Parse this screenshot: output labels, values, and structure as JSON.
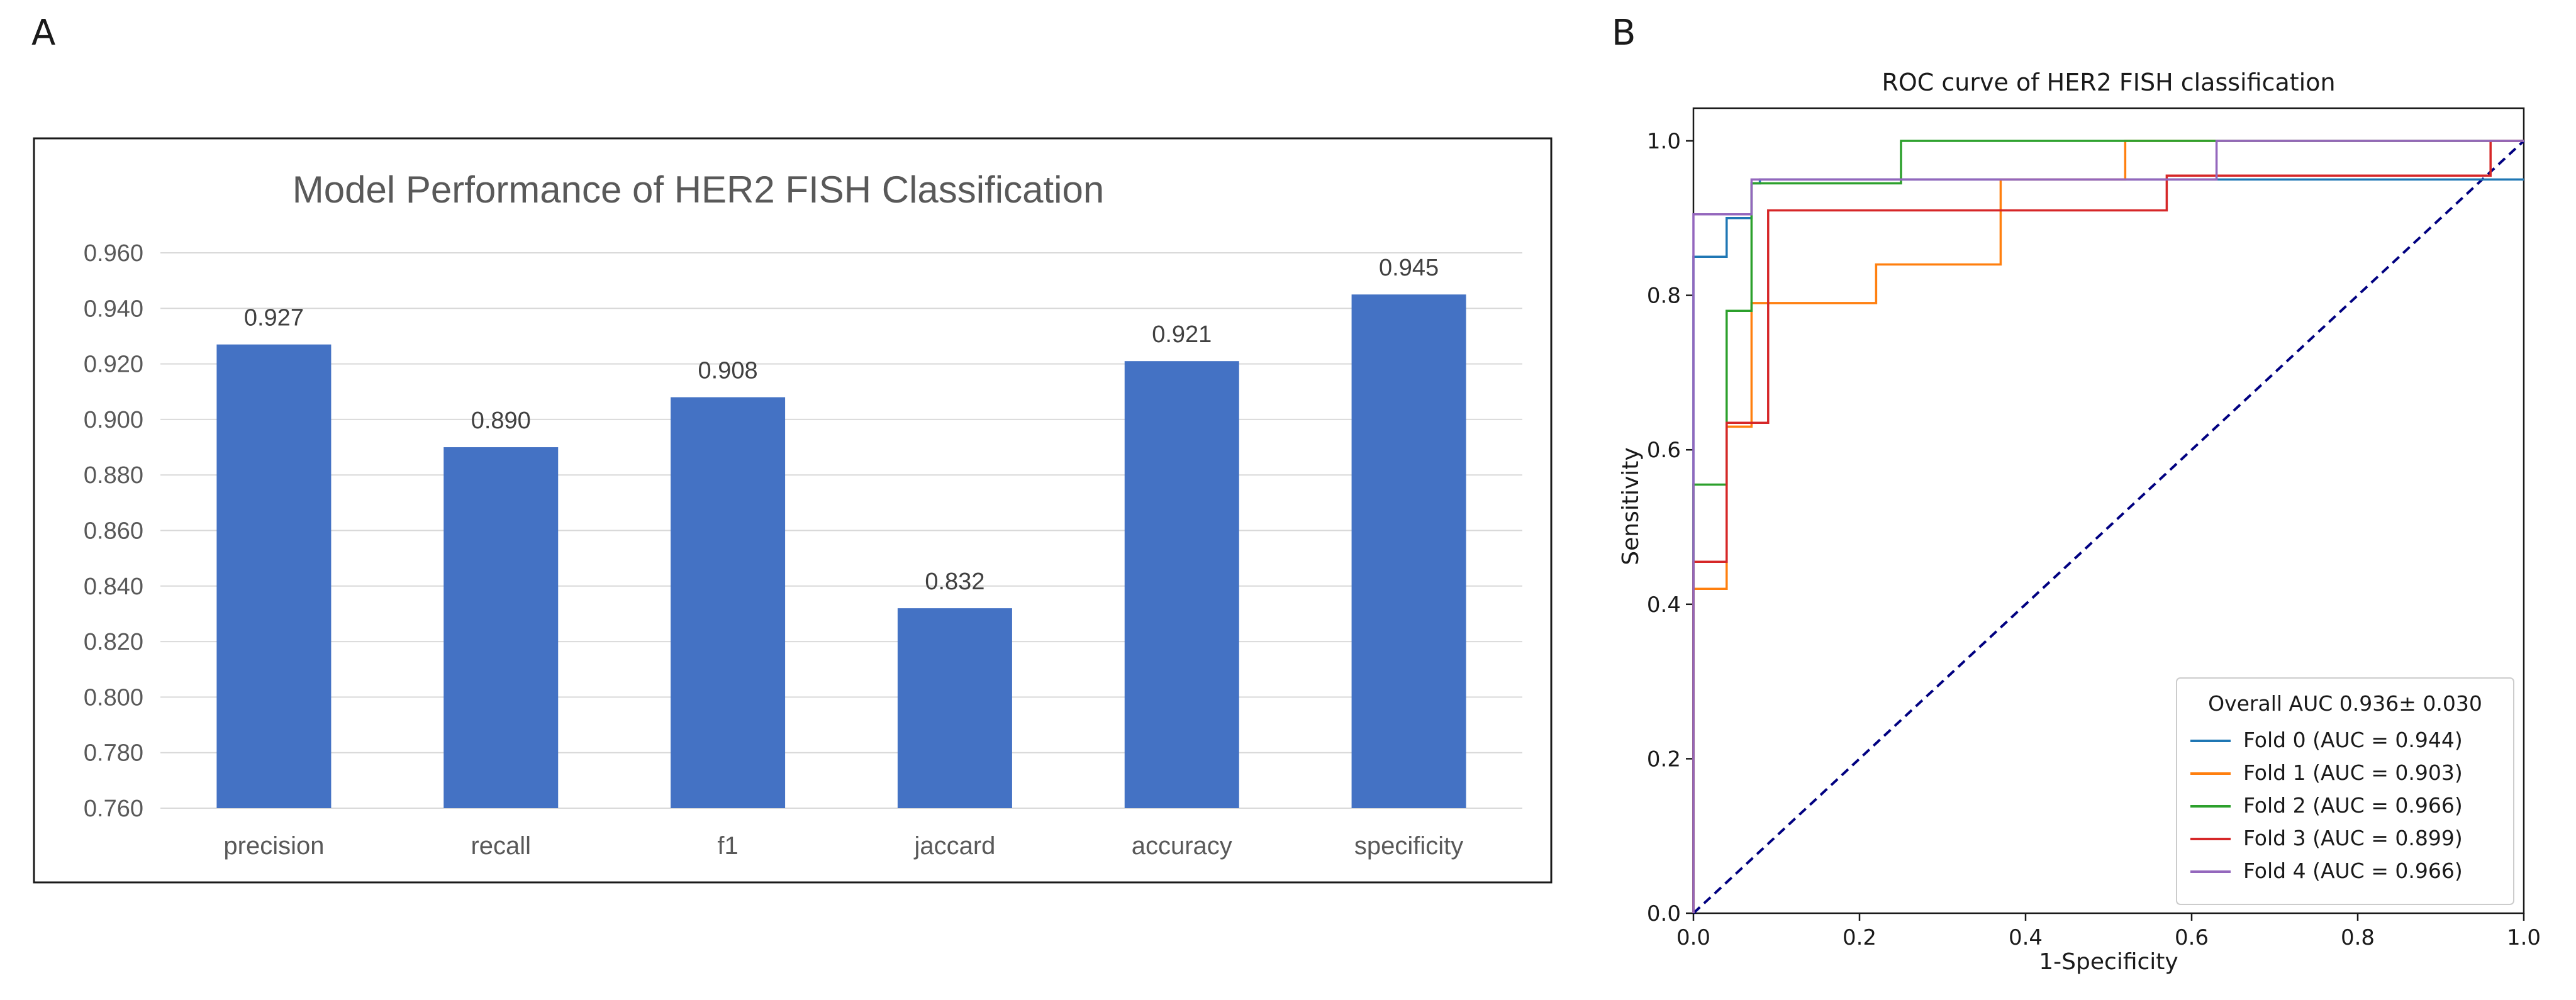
{
  "panels": {
    "a": "A",
    "b": "B"
  },
  "chart_data": [
    {
      "type": "bar",
      "title": "Model Performance of HER2 FISH Classification",
      "categories": [
        "precision",
        "recall",
        "f1",
        "jaccard",
        "accuracy",
        "specificity"
      ],
      "values": [
        0.927,
        0.89,
        0.908,
        0.832,
        0.921,
        0.945
      ],
      "value_labels": [
        "0.927",
        "0.890",
        "0.908",
        "0.832",
        "0.921",
        "0.945"
      ],
      "ylim": [
        0.76,
        0.96
      ],
      "yticks": [
        "0.760",
        "0.780",
        "0.800",
        "0.820",
        "0.840",
        "0.860",
        "0.880",
        "0.900",
        "0.920",
        "0.940",
        "0.960"
      ],
      "xlabel": "",
      "ylabel": "",
      "grid": true,
      "bar_color": "#4472c4"
    },
    {
      "type": "line",
      "title": "ROC curve of HER2 FISH classification",
      "xlabel": "1-Specificity",
      "ylabel": "Sensitivity",
      "xlim": [
        0.0,
        1.0
      ],
      "ylim": [
        0.0,
        1.05
      ],
      "xticks": [
        "0.0",
        "0.2",
        "0.4",
        "0.6",
        "0.8",
        "1.0"
      ],
      "yticks": [
        "0.0",
        "0.2",
        "0.4",
        "0.6",
        "0.8",
        "1.0"
      ],
      "legend_title": "Overall AUC 0.936± 0.030",
      "legend_position": "bottom-right",
      "diagonal_color": "#000080",
      "series": [
        {
          "name": "Fold 0 (AUC = 0.944)",
          "color": "#1f77b4",
          "x": [
            0,
            0,
            0.04,
            0.04,
            0.07,
            0.07,
            0.08,
            0.08,
            1.0,
            1.0
          ],
          "y": [
            0,
            0.85,
            0.85,
            0.9,
            0.9,
            0.945,
            0.945,
            0.95,
            0.95,
            0.95
          ]
        },
        {
          "name": "Fold 1 (AUC = 0.903)",
          "color": "#ff7f0e",
          "x": [
            0,
            0,
            0.04,
            0.04,
            0.07,
            0.07,
            0.22,
            0.22,
            0.37,
            0.37,
            0.52,
            0.52,
            1.0
          ],
          "y": [
            0,
            0.42,
            0.42,
            0.63,
            0.63,
            0.79,
            0.79,
            0.84,
            0.84,
            0.95,
            0.95,
            1.0,
            1.0
          ]
        },
        {
          "name": "Fold 2 (AUC = 0.966)",
          "color": "#2ca02c",
          "x": [
            0,
            0,
            0.04,
            0.04,
            0.07,
            0.07,
            0.25,
            0.25,
            1.0
          ],
          "y": [
            0,
            0.555,
            0.555,
            0.78,
            0.78,
            0.945,
            0.945,
            1.0,
            1.0
          ]
        },
        {
          "name": "Fold 3 (AUC = 0.899)",
          "color": "#d62728",
          "x": [
            0,
            0,
            0.04,
            0.04,
            0.09,
            0.09,
            0.57,
            0.57,
            0.96,
            0.96,
            1.0
          ],
          "y": [
            0,
            0.455,
            0.455,
            0.635,
            0.635,
            0.91,
            0.91,
            0.955,
            0.955,
            1.0,
            1.0
          ]
        },
        {
          "name": "Fold 4 (AUC = 0.966)",
          "color": "#9467bd",
          "x": [
            0,
            0,
            0.07,
            0.07,
            0.63,
            0.63,
            1.0
          ],
          "y": [
            0,
            0.905,
            0.905,
            0.95,
            0.95,
            1.0,
            1.0
          ]
        }
      ]
    }
  ]
}
